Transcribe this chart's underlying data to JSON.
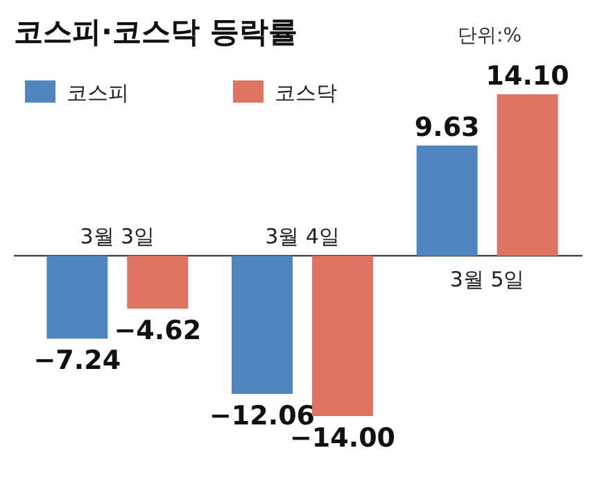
{
  "chart_data": {
    "type": "bar",
    "title": "코스피·코스닥 등락률",
    "subtitle": "단위:%",
    "categories": [
      "3월 3일",
      "3월 4일",
      "3월 5일"
    ],
    "series": [
      {
        "name": "코스피",
        "color": "#4f86c0",
        "values": [
          -7.24,
          -12.06,
          9.63
        ],
        "value_labels": [
          "−7.24",
          "−12.06",
          "9.63"
        ]
      },
      {
        "name": "코스닥",
        "color": "#df7463",
        "values": [
          -4.62,
          -14.0,
          14.1
        ],
        "value_labels": [
          "−4.62",
          "−14.00",
          "14.10"
        ]
      }
    ],
    "legend": "top left"
  }
}
